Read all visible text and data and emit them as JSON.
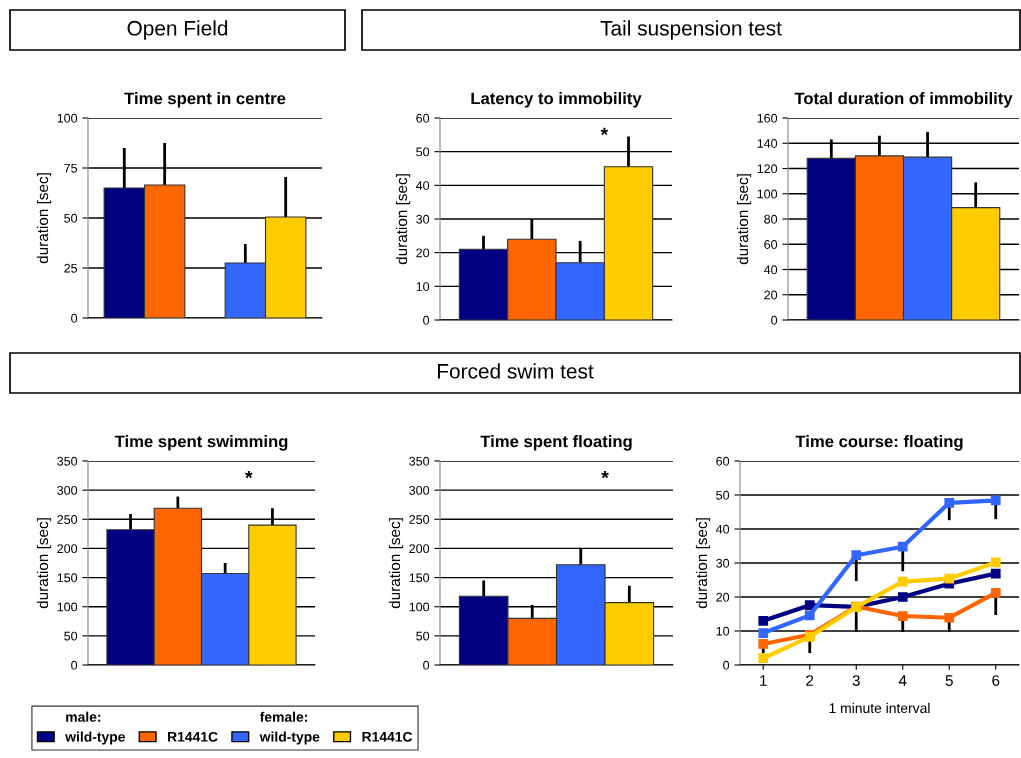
{
  "chart_data": [
    {
      "type": "bar",
      "title": "Time spent in centre",
      "ylabel": "duration [sec]",
      "subtitle": "Open Field",
      "categories": [
        null,
        null,
        null,
        null,
        null
      ],
      "ylim": [
        0,
        100
      ],
      "yticks": [
        0,
        25,
        50,
        75,
        100
      ],
      "grid": "y",
      "series": [
        {
          "color": "#000080",
          "values": [
            65,
            null,
            null,
            null,
            null
          ],
          "errors": [
            [
              65,
              85
            ],
            null,
            null,
            null,
            null
          ]
        },
        {
          "color": "#ff6600",
          "values": [
            null,
            66.5,
            null,
            null,
            null
          ],
          "errors": [
            null,
            [
              66.5,
              87.5
            ],
            null,
            null,
            null
          ]
        },
        {
          "color": "#3366ff",
          "values": [
            null,
            null,
            null,
            27.5,
            null
          ],
          "errors": [
            null,
            null,
            null,
            [
              27.5,
              37
            ],
            null
          ]
        },
        {
          "color": "#ffcc00",
          "values": [
            null,
            null,
            null,
            null,
            50.5
          ],
          "errors": [
            null,
            null,
            null,
            null,
            [
              50.5,
              70.5
            ]
          ]
        }
      ]
    },
    {
      "type": "bar",
      "title": "Latency to immobility",
      "ylabel": "duration [sec]",
      "subtitle": "Tail suspension test",
      "annotations": [
        "*"
      ],
      "categories": [
        null,
        null,
        null,
        null
      ],
      "ylim": [
        0,
        60
      ],
      "yticks": [
        0,
        10,
        20,
        30,
        40,
        50,
        60
      ],
      "grid": "y",
      "series": [
        {
          "color": "#000080",
          "values": [
            21,
            null,
            null,
            null
          ],
          "errors": [
            [
              21,
              25
            ],
            null,
            null,
            null
          ]
        },
        {
          "color": "#ff6600",
          "values": [
            null,
            24,
            null,
            null
          ],
          "errors": [
            null,
            [
              24,
              30
            ],
            null,
            null
          ]
        },
        {
          "color": "#3366ff",
          "values": [
            null,
            null,
            17,
            null
          ],
          "errors": [
            null,
            null,
            [
              17,
              23.5
            ],
            null
          ]
        },
        {
          "color": "#ffcc00",
          "values": [
            null,
            null,
            null,
            45.5
          ],
          "errors": [
            null,
            null,
            null,
            [
              45.5,
              54.5
            ]
          ]
        }
      ]
    },
    {
      "type": "bar",
      "title": "Total duration of immobility",
      "ylabel": "duration [sec]",
      "categories": [
        null,
        null,
        null,
        null
      ],
      "ylim": [
        0,
        160
      ],
      "yticks": [
        0,
        20,
        40,
        60,
        80,
        100,
        120,
        140,
        160
      ],
      "grid": "y",
      "series": [
        {
          "color": "#000080",
          "values": [
            128,
            null,
            null,
            null
          ],
          "errors": [
            [
              128,
              143
            ],
            null,
            null,
            null
          ]
        },
        {
          "color": "#ff6600",
          "values": [
            null,
            130,
            null,
            null
          ],
          "errors": [
            null,
            [
              130,
              146
            ],
            null,
            null
          ]
        },
        {
          "color": "#3366ff",
          "values": [
            null,
            null,
            129,
            null
          ],
          "errors": [
            null,
            null,
            [
              129,
              149
            ],
            null
          ]
        },
        {
          "color": "#ffcc00",
          "values": [
            null,
            null,
            null,
            89
          ],
          "errors": [
            null,
            null,
            null,
            [
              89,
              109
            ]
          ]
        }
      ]
    },
    {
      "type": "bar",
      "title": "Time spent swimming",
      "ylabel": "duration [sec]",
      "annotations": [
        "*",
        "male:",
        "female:"
      ],
      "categories": [
        null,
        null,
        null,
        null
      ],
      "ylim": [
        0,
        350
      ],
      "yticks": [
        0,
        50,
        100,
        150,
        200,
        250,
        300,
        350
      ],
      "grid": "y",
      "legend": "bottom",
      "series": [
        {
          "name": "wild-type",
          "color": "#000080",
          "values": [
            232,
            null,
            null,
            null
          ],
          "errors": [
            [
              232,
              259
            ],
            null,
            null,
            null
          ]
        },
        {
          "name": "R1441C",
          "color": "#ff6600",
          "values": [
            null,
            269,
            null,
            null
          ],
          "errors": [
            null,
            [
              269,
              289
            ],
            null,
            null
          ]
        },
        {
          "name": "wild-type",
          "color": "#3366ff",
          "values": [
            null,
            null,
            157,
            null
          ],
          "errors": [
            null,
            null,
            [
              157,
              175
            ],
            null
          ]
        },
        {
          "name": "R1441C",
          "color": "#ffcc00",
          "values": [
            null,
            null,
            null,
            240
          ],
          "errors": [
            null,
            null,
            null,
            [
              240,
              269
            ]
          ]
        }
      ]
    },
    {
      "type": "bar",
      "title": "Time spent floating",
      "subtitle": "Forced swim test",
      "ylabel": "duration [sec]",
      "annotations": [
        "*"
      ],
      "categories": [
        null,
        null,
        null,
        null
      ],
      "ylim": [
        0,
        350
      ],
      "yticks": [
        0,
        50,
        100,
        150,
        200,
        250,
        300,
        350
      ],
      "grid": "y",
      "series": [
        {
          "color": "#000080",
          "values": [
            118,
            null,
            null,
            null
          ],
          "errors": [
            [
              118,
              145
            ],
            null,
            null,
            null
          ]
        },
        {
          "color": "#ff6600",
          "values": [
            null,
            80,
            null,
            null
          ],
          "errors": [
            null,
            [
              80,
              103
            ],
            null,
            null
          ]
        },
        {
          "color": "#3366ff",
          "values": [
            null,
            null,
            172,
            null
          ],
          "errors": [
            null,
            null,
            [
              172,
              201
            ],
            null
          ]
        },
        {
          "color": "#ffcc00",
          "values": [
            null,
            null,
            null,
            107
          ],
          "errors": [
            null,
            null,
            null,
            [
              107,
              136
            ]
          ]
        }
      ]
    },
    {
      "type": "line",
      "title": "Time course: floating",
      "ylabel": "duration [sec]",
      "xlabel": "1 minute interval",
      "categories": [
        "1",
        "2",
        "3",
        "4",
        "5",
        "6"
      ],
      "ylim": [
        0,
        60
      ],
      "yticks": [
        0,
        10,
        20,
        30,
        40,
        50,
        60
      ],
      "grid": "y",
      "marker": "square",
      "line_style": "solid",
      "series": [
        {
          "color": "#000080",
          "values": [
            13,
            17.6,
            17.1,
            20,
            23.9,
            26.9
          ]
        },
        {
          "color": "#ff6600",
          "values": [
            6.2,
            8.9,
            17.2,
            14.4,
            13.9,
            21.2
          ],
          "errors": [
            [
              3.5,
              6.2
            ],
            [
              3.5,
              8.9
            ],
            [
              9.7,
              17.2
            ],
            [
              9.7,
              14.4
            ],
            [
              9.7,
              13.9
            ],
            [
              14.7,
              21.2
            ]
          ]
        },
        {
          "color": "#3366ff",
          "values": [
            9.4,
            14.6,
            32.3,
            34.8,
            47.7,
            48.4
          ],
          "errors": [
            null,
            null,
            [
              24.7,
              32.3
            ],
            [
              27.6,
              34.8
            ],
            [
              42.6,
              47.7
            ],
            [
              42.9,
              48.4
            ]
          ]
        },
        {
          "color": "#ffcc00",
          "values": [
            2,
            8.3,
            17,
            24.5,
            25.4,
            30.2
          ]
        }
      ]
    }
  ]
}
